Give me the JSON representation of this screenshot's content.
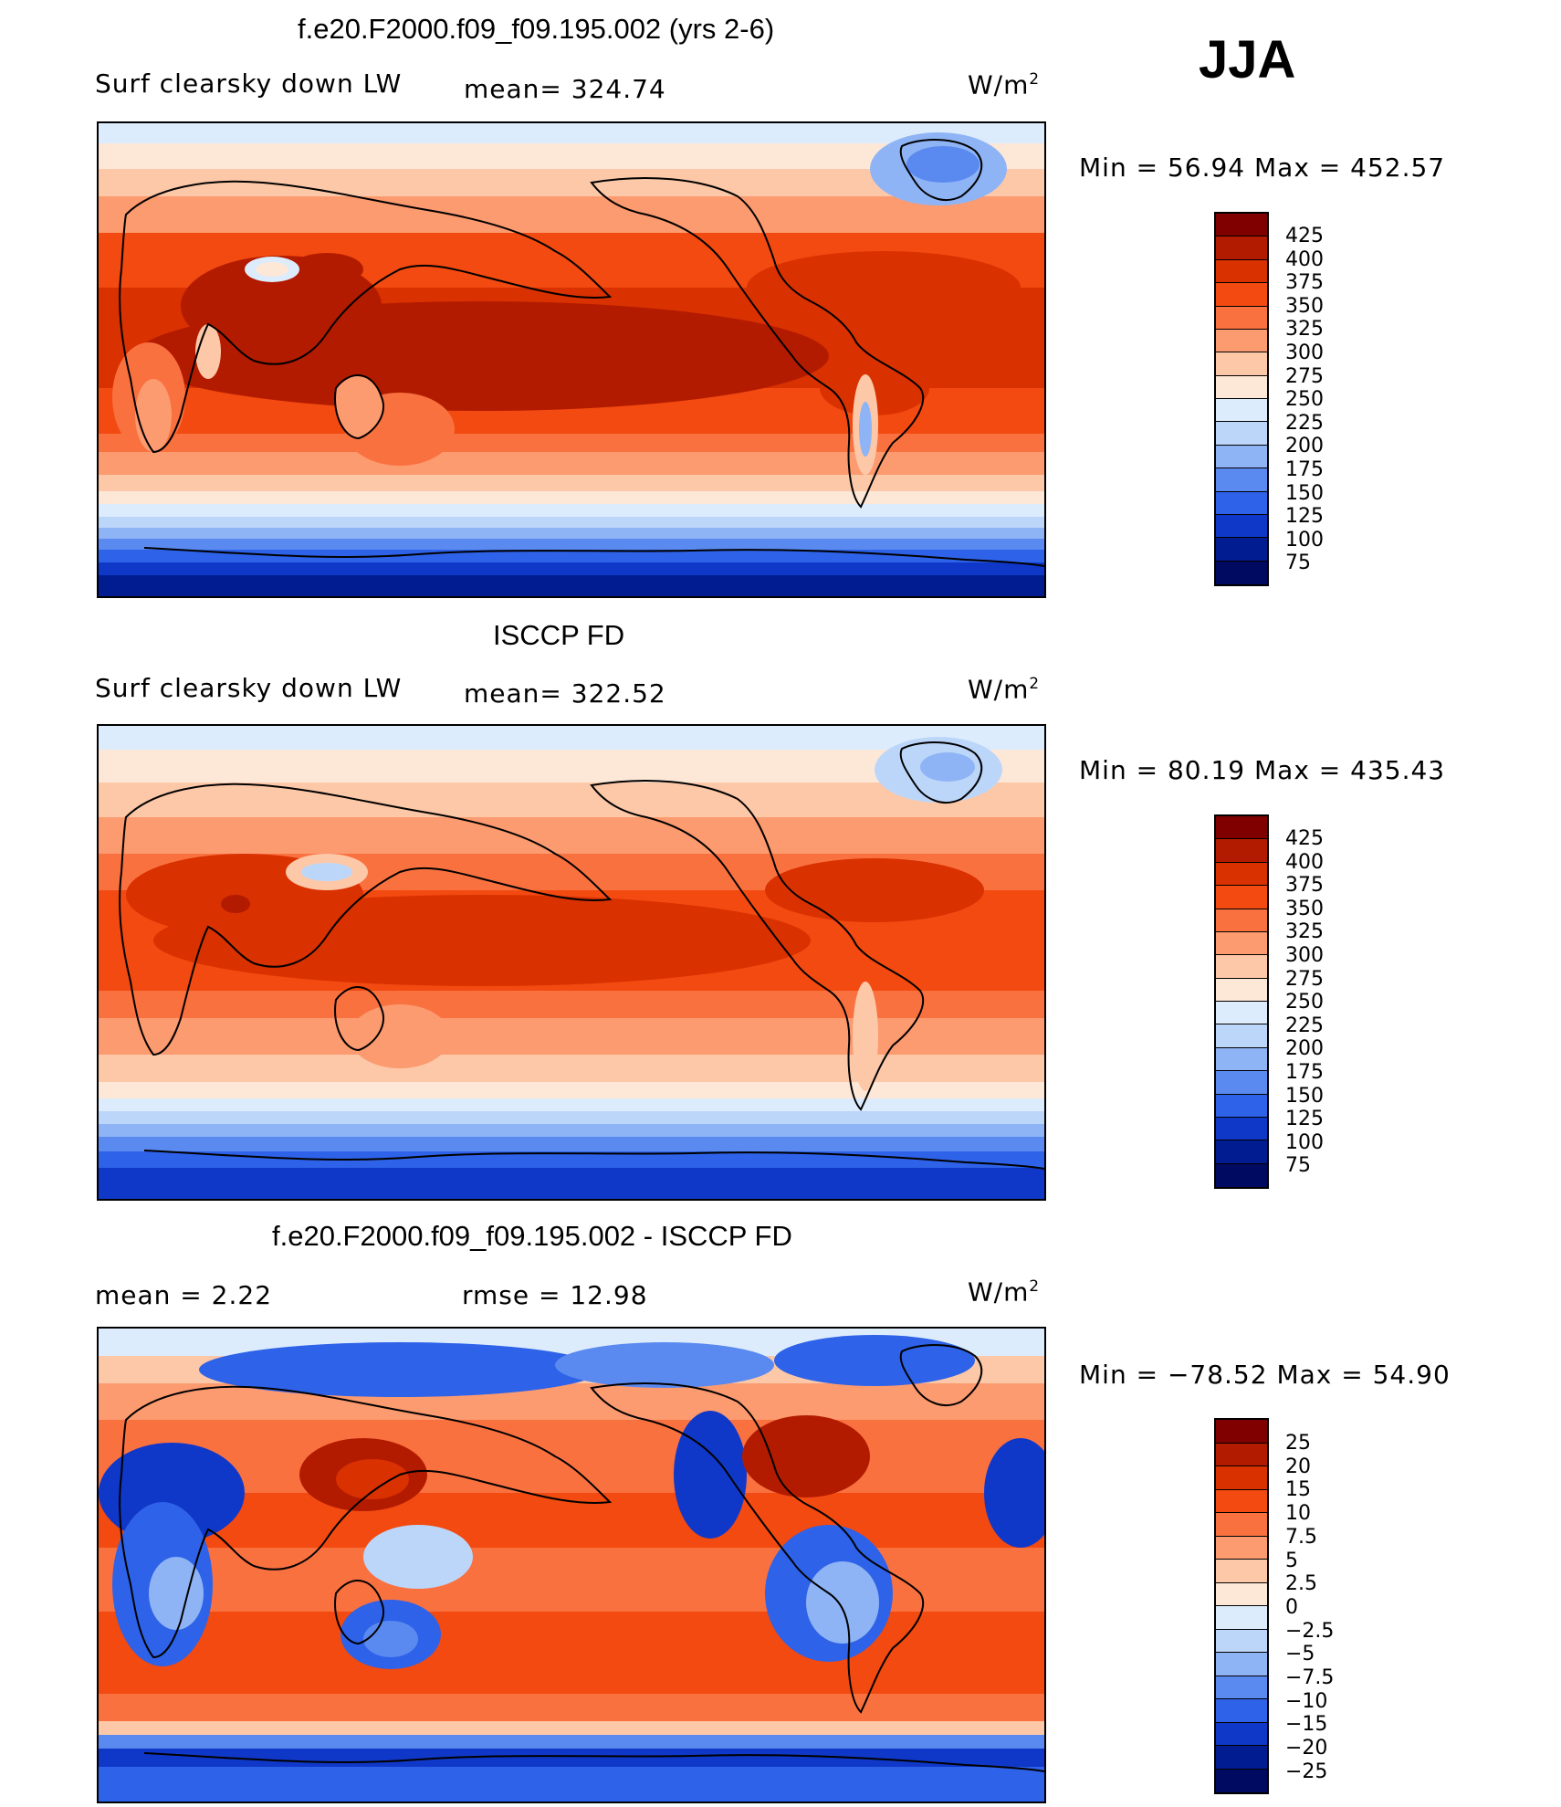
{
  "season": "JJA",
  "panels": [
    {
      "title": "f.e20.F2000.f09_f09.195.002 (yrs 2-6)",
      "left_label": "Surf clearsky down LW",
      "mid_label": "mean=  324.74",
      "units_base": "W/m",
      "units_exp": "2",
      "minmax": "Min =   56.94  Max  =  452.57",
      "colorbar": {
        "labels": [
          "425",
          "400",
          "375",
          "350",
          "325",
          "300",
          "275",
          "250",
          "225",
          "200",
          "175",
          "150",
          "125",
          "100",
          "75"
        ],
        "colors": [
          "#800000",
          "#b31b00",
          "#d93100",
          "#f24a10",
          "#fa7140",
          "#fc9a70",
          "#fdc8a8",
          "#fde8d8",
          "#dcecfc",
          "#bcd6fa",
          "#8fb4f5",
          "#5a8af0",
          "#2e62e8",
          "#1038c8",
          "#001c90",
          "#000a60"
        ]
      }
    },
    {
      "title": "ISCCP FD",
      "left_label": "Surf clearsky down LW",
      "mid_label": "mean=  322.52",
      "units_base": "W/m",
      "units_exp": "2",
      "minmax": "Min =   80.19  Max  =  435.43",
      "colorbar": {
        "labels": [
          "425",
          "400",
          "375",
          "350",
          "325",
          "300",
          "275",
          "250",
          "225",
          "200",
          "175",
          "150",
          "125",
          "100",
          "75"
        ],
        "colors": [
          "#800000",
          "#b31b00",
          "#d93100",
          "#f24a10",
          "#fa7140",
          "#fc9a70",
          "#fdc8a8",
          "#fde8d8",
          "#dcecfc",
          "#bcd6fa",
          "#8fb4f5",
          "#5a8af0",
          "#2e62e8",
          "#1038c8",
          "#001c90",
          "#000a60"
        ]
      }
    },
    {
      "title": "f.e20.F2000.f09_f09.195.002 - ISCCP FD",
      "left_label": "mean =     2.22",
      "mid_label": "rmse =     12.98",
      "units_base": "W/m",
      "units_exp": "2",
      "minmax": "Min = −78.52  Max =    54.90",
      "colorbar": {
        "labels": [
          "25",
          "20",
          "15",
          "10",
          "7.5",
          "5",
          "2.5",
          "0",
          "−2.5",
          "−5",
          "−7.5",
          "−10",
          "−15",
          "−20",
          "−25"
        ],
        "colors": [
          "#800000",
          "#b31b00",
          "#d93100",
          "#f24a10",
          "#fa7140",
          "#fc9a70",
          "#fdc8a8",
          "#fde8d8",
          "#dcecfc",
          "#bcd6fa",
          "#8fb4f5",
          "#5a8af0",
          "#2e62e8",
          "#1038c8",
          "#001c90",
          "#000a60"
        ]
      }
    }
  ]
}
